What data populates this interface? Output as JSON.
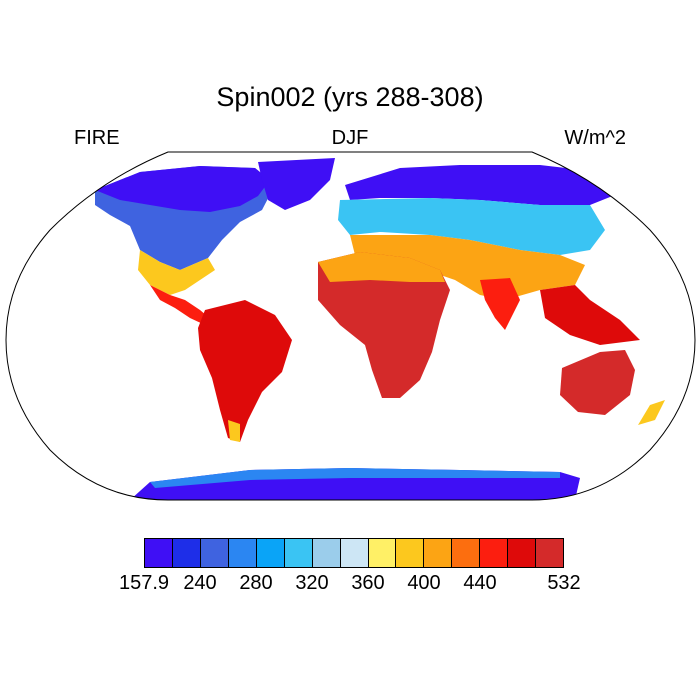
{
  "title": "Spin002 (yrs 288-308)",
  "left_label": "FIRE",
  "center_label": "DJF",
  "right_label": "W/m^2",
  "colorbar": {
    "colors": [
      "#3f0ff5",
      "#1e2ee8",
      "#3f63e0",
      "#2b86f2",
      "#0aa4f7",
      "#3ac4f3",
      "#9bcdeb",
      "#cde6f5",
      "#fff066",
      "#fcc81e",
      "#fca414",
      "#fc6e0f",
      "#fc1e0f",
      "#de0a0a",
      "#d42a2a"
    ],
    "labels": [
      "157.9",
      "240",
      "280",
      "320",
      "360",
      "400",
      "440",
      "532"
    ],
    "label_boundaries": [
      0,
      2,
      4,
      6,
      8,
      10,
      12,
      15
    ]
  },
  "projection": "Robinson",
  "field": "FIRE downwelling flux, DJF mean"
}
